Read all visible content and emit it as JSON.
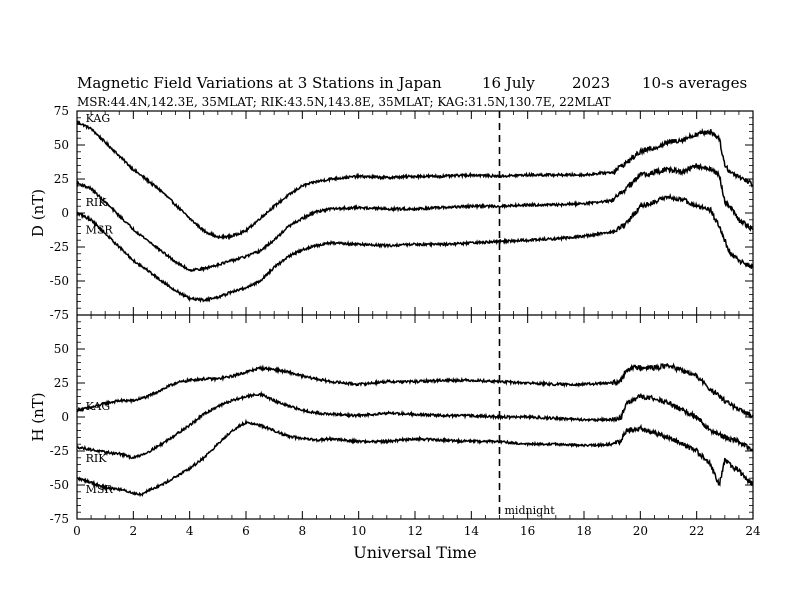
{
  "header": {
    "title": "Magnetic Field Variations at 3 Stations in Japan",
    "date": "16 July",
    "year": "2023",
    "averaging": "10-s averages",
    "stations_info": "MSR:44.4N,142.3E, 35MLAT;  RIK:43.5N,143.8E, 35MLAT;  KAG:31.5N,130.7E, 22MLAT"
  },
  "annotation": {
    "midnight": "midnight",
    "midnight_x": 15
  },
  "chart_data": [
    {
      "type": "line",
      "panel": "D",
      "ylabel": "D (nT)",
      "xlabel": "",
      "xlim": [
        0,
        24
      ],
      "ylim": [
        -75,
        75
      ],
      "yticks": [
        75,
        50,
        25,
        0,
        -25,
        -50,
        -75
      ],
      "series": [
        {
          "name": "KAG",
          "label_x": 0.2,
          "label_y": 70,
          "x": [
            0,
            0.5,
            1,
            1.5,
            2,
            2.5,
            3,
            3.5,
            4,
            4.5,
            5,
            5.5,
            6,
            6.5,
            7,
            7.5,
            8,
            8.5,
            9,
            10,
            11,
            12,
            13,
            14,
            15,
            16,
            17,
            18,
            19,
            19.5,
            20,
            20.5,
            21,
            21.5,
            22,
            22.5,
            22.8,
            23,
            23.2,
            23.5,
            24
          ],
          "y": [
            67,
            62,
            52,
            42,
            32,
            24,
            16,
            6,
            -4,
            -13,
            -18,
            -17,
            -13,
            -4,
            5,
            13,
            20,
            23,
            25,
            27,
            26,
            27,
            27,
            28,
            27,
            28,
            28,
            28,
            30,
            37,
            45,
            48,
            52,
            54,
            58,
            60,
            55,
            35,
            30,
            27,
            21
          ]
        },
        {
          "name": "RIK",
          "label_x": 0.2,
          "label_y": 8,
          "x": [
            0,
            0.5,
            1,
            1.5,
            2,
            2.5,
            3,
            3.5,
            4,
            4.5,
            5,
            5.5,
            6,
            6.5,
            7,
            7.5,
            8,
            8.5,
            9,
            10,
            11,
            12,
            13,
            14,
            15,
            16,
            17,
            18,
            19,
            19.5,
            20,
            20.5,
            21,
            21.5,
            22,
            22.5,
            22.8,
            23,
            23.2,
            23.5,
            24
          ],
          "y": [
            22,
            18,
            8,
            -2,
            -12,
            -20,
            -28,
            -36,
            -42,
            -41,
            -38,
            -35,
            -32,
            -28,
            -20,
            -10,
            -4,
            1,
            3,
            4,
            3,
            3,
            4,
            5,
            5,
            6,
            6,
            7,
            9,
            18,
            28,
            30,
            32,
            30,
            35,
            32,
            28,
            8,
            5,
            -5,
            -12
          ]
        },
        {
          "name": "MSR",
          "label_x": 0.2,
          "label_y": -12,
          "x": [
            0,
            0.5,
            1,
            1.5,
            2,
            2.5,
            3,
            3.5,
            4,
            4.5,
            5,
            5.5,
            6,
            6.5,
            7,
            7.5,
            8,
            8.5,
            9,
            10,
            11,
            12,
            13,
            14,
            15,
            16,
            17,
            18,
            19,
            19.5,
            20,
            20.5,
            21,
            21.5,
            22,
            22.5,
            22.8,
            23,
            23.2,
            23.5,
            24
          ],
          "y": [
            0,
            -5,
            -15,
            -25,
            -35,
            -42,
            -50,
            -57,
            -63,
            -64,
            -62,
            -58,
            -55,
            -50,
            -40,
            -32,
            -27,
            -24,
            -22,
            -23,
            -24,
            -23,
            -23,
            -22,
            -21,
            -20,
            -19,
            -17,
            -14,
            -8,
            5,
            8,
            12,
            10,
            5,
            2,
            -10,
            -20,
            -30,
            -35,
            -40
          ]
        }
      ]
    },
    {
      "type": "line",
      "panel": "H",
      "ylabel": "H (nT)",
      "xlabel": "Universal Time",
      "xlim": [
        0,
        24
      ],
      "ylim": [
        -75,
        75
      ],
      "yticks": [
        50,
        25,
        0,
        -25,
        -50,
        -75
      ],
      "xticks": [
        0,
        2,
        4,
        6,
        8,
        10,
        12,
        14,
        16,
        18,
        20,
        22,
        24
      ],
      "series": [
        {
          "name": "KAG",
          "label_x": 0.2,
          "label_y": 8,
          "x": [
            0,
            0.5,
            1,
            1.5,
            2,
            2.5,
            3,
            3.5,
            4,
            4.5,
            5,
            5.5,
            6,
            6.5,
            7,
            7.5,
            8,
            8.5,
            9,
            10,
            11,
            12,
            13,
            14,
            15,
            16,
            17,
            18,
            19,
            19.3,
            19.5,
            20,
            20.5,
            21,
            21.5,
            22,
            22.5,
            23,
            23.5,
            24
          ],
          "y": [
            5,
            7,
            10,
            12,
            12,
            15,
            20,
            25,
            27,
            28,
            28,
            30,
            33,
            36,
            35,
            33,
            30,
            28,
            26,
            24,
            26,
            26,
            27,
            27,
            26,
            25,
            24,
            24,
            25,
            26,
            35,
            37,
            36,
            38,
            34,
            30,
            20,
            12,
            5,
            1
          ]
        },
        {
          "name": "RIK",
          "label_x": 0.2,
          "label_y": -30,
          "x": [
            0,
            0.5,
            1,
            1.5,
            2,
            2.5,
            3,
            3.5,
            4,
            4.5,
            5,
            5.5,
            6,
            6.5,
            7,
            7.5,
            8,
            8.5,
            9,
            10,
            11,
            12,
            13,
            14,
            15,
            16,
            17,
            18,
            19,
            19.3,
            19.5,
            20,
            20.5,
            21,
            21.5,
            22,
            22.5,
            23,
            23.5,
            24
          ],
          "y": [
            -22,
            -24,
            -26,
            -27,
            -30,
            -26,
            -20,
            -13,
            -6,
            2,
            8,
            12,
            15,
            17,
            12,
            8,
            5,
            3,
            2,
            1,
            3,
            2,
            1,
            1,
            0,
            0,
            -1,
            -2,
            -2,
            -1,
            10,
            15,
            14,
            10,
            5,
            0,
            -10,
            -15,
            -18,
            -25
          ]
        },
        {
          "name": "MSR",
          "label_x": 0.2,
          "label_y": -53,
          "x": [
            0,
            0.5,
            1,
            1.5,
            2,
            2.3,
            2.5,
            3,
            3.5,
            4,
            4.5,
            5,
            5.5,
            6,
            6.5,
            7,
            7.5,
            8,
            8.5,
            9,
            10,
            11,
            12,
            13,
            14,
            15,
            16,
            17,
            18,
            19,
            19.3,
            19.5,
            20,
            20.5,
            21,
            21.5,
            22,
            22.5,
            22.8,
            23,
            23.5,
            24
          ],
          "y": [
            -45,
            -48,
            -52,
            -53,
            -56,
            -57,
            -54,
            -50,
            -44,
            -38,
            -30,
            -20,
            -10,
            -4,
            -6,
            -10,
            -14,
            -16,
            -17,
            -16,
            -18,
            -18,
            -16,
            -17,
            -18,
            -18,
            -20,
            -20,
            -21,
            -20,
            -18,
            -10,
            -8,
            -12,
            -15,
            -20,
            -25,
            -35,
            -50,
            -32,
            -40,
            -50
          ]
        }
      ]
    }
  ]
}
